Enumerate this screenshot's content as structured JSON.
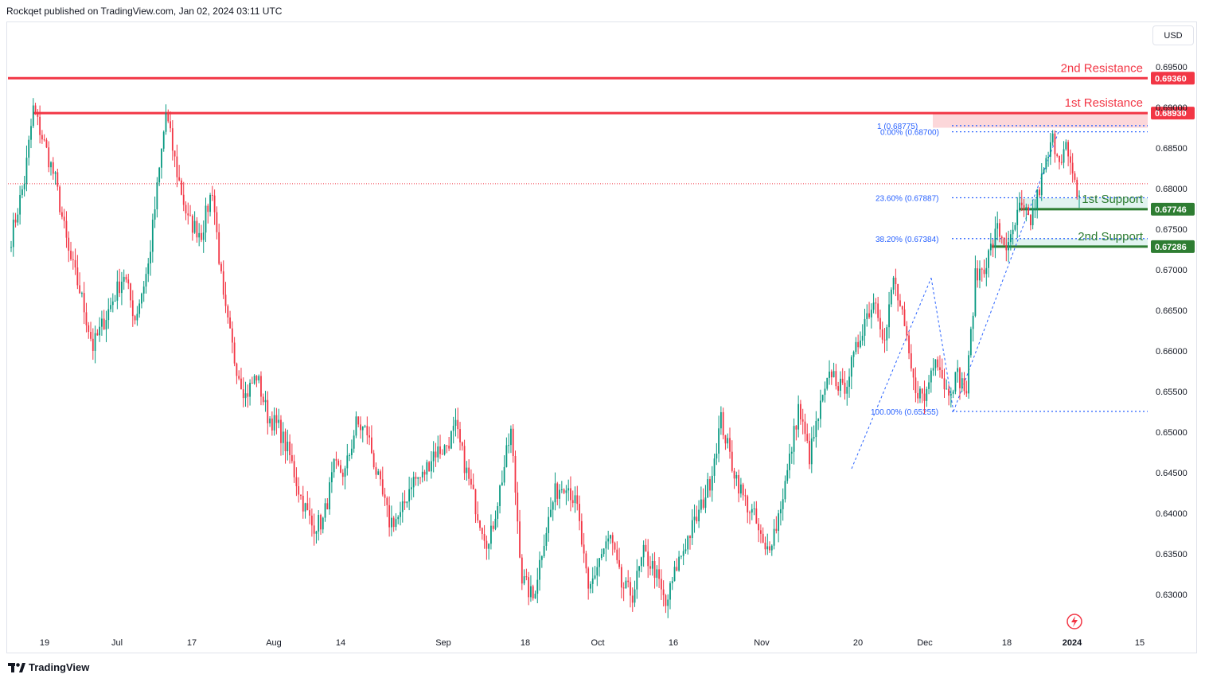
{
  "header": {
    "text": "Rockqet published on TradingView.com, Jan 02, 2024 03:11 UTC"
  },
  "currency_button": "USD",
  "footer": {
    "logo_text": "TradingView"
  },
  "colors": {
    "up": "#089981",
    "down": "#f23645",
    "resistance": "#f23645",
    "support": "#089981",
    "support_line": "#2e7d32",
    "fib": "#2962ff",
    "grid_text": "#131722"
  },
  "chart_data": {
    "type": "candlestick",
    "ylim": [
      0.627,
      0.6995
    ],
    "y_ticks": [
      "0.69500",
      "0.69000",
      "0.68500",
      "0.68000",
      "0.67500",
      "0.67000",
      "0.66500",
      "0.66000",
      "0.65500",
      "0.65000",
      "0.64500",
      "0.64000",
      "0.63500",
      "0.63000"
    ],
    "x_ticks": [
      "19",
      "Jul",
      "17",
      "Aug",
      "14",
      "Sep",
      "18",
      "Oct",
      "16",
      "Nov",
      "20",
      "Dec",
      "18",
      "2024",
      "15"
    ],
    "levels": [
      {
        "label": "2nd Resistance",
        "price": "0.69360",
        "kind": "resistance"
      },
      {
        "label": "1st Resistance",
        "price": "0.68930",
        "kind": "resistance"
      },
      {
        "label": "1st Support",
        "price": "0.67746",
        "kind": "support"
      },
      {
        "label": "2nd Support",
        "price": "0.67286",
        "kind": "support"
      }
    ],
    "fib_labels": [
      {
        "text": "1 (0.68775)"
      },
      {
        "text": "0.00% (0.68700)"
      },
      {
        "text": "23.60% (0.67887)"
      },
      {
        "text": "38.20% (0.67384)"
      },
      {
        "text": "100.00% (0.65255)"
      }
    ],
    "price_path": [
      [
        0,
        0.674
      ],
      [
        6,
        0.681
      ],
      [
        10,
        0.6898
      ],
      [
        15,
        0.6855
      ],
      [
        20,
        0.681
      ],
      [
        26,
        0.672
      ],
      [
        31,
        0.6675
      ],
      [
        37,
        0.6605
      ],
      [
        44,
        0.665
      ],
      [
        51,
        0.6695
      ],
      [
        56,
        0.664
      ],
      [
        62,
        0.6705
      ],
      [
        70,
        0.6893
      ],
      [
        75,
        0.682
      ],
      [
        80,
        0.676
      ],
      [
        86,
        0.6745
      ],
      [
        91,
        0.68
      ],
      [
        96,
        0.666
      ],
      [
        101,
        0.659
      ],
      [
        106,
        0.6545
      ],
      [
        111,
        0.657
      ],
      [
        116,
        0.652
      ],
      [
        121,
        0.6505
      ],
      [
        126,
        0.647
      ],
      [
        131,
        0.642
      ],
      [
        136,
        0.6385
      ],
      [
        141,
        0.639
      ],
      [
        146,
        0.6455
      ],
      [
        151,
        0.645
      ],
      [
        156,
        0.651
      ],
      [
        161,
        0.65
      ],
      [
        166,
        0.644
      ],
      [
        171,
        0.639
      ],
      [
        176,
        0.6395
      ],
      [
        181,
        0.644
      ],
      [
        186,
        0.6445
      ],
      [
        191,
        0.6475
      ],
      [
        196,
        0.648
      ],
      [
        201,
        0.6505
      ],
      [
        206,
        0.645
      ],
      [
        211,
        0.64
      ],
      [
        216,
        0.636
      ],
      [
        221,
        0.643
      ],
      [
        226,
        0.65
      ],
      [
        231,
        0.632
      ],
      [
        236,
        0.6295
      ],
      [
        241,
        0.637
      ],
      [
        246,
        0.6425
      ],
      [
        251,
        0.644
      ],
      [
        256,
        0.6405
      ],
      [
        261,
        0.63
      ],
      [
        266,
        0.6345
      ],
      [
        271,
        0.637
      ],
      [
        276,
        0.631
      ],
      [
        281,
        0.63
      ],
      [
        286,
        0.635
      ],
      [
        291,
        0.633
      ],
      [
        296,
        0.6285
      ],
      [
        301,
        0.6335
      ],
      [
        306,
        0.637
      ],
      [
        311,
        0.64
      ],
      [
        316,
        0.644
      ],
      [
        321,
        0.6515
      ],
      [
        326,
        0.646
      ],
      [
        331,
        0.642
      ],
      [
        336,
        0.6395
      ],
      [
        341,
        0.635
      ],
      [
        346,
        0.6385
      ],
      [
        351,
        0.645
      ],
      [
        356,
        0.653
      ],
      [
        361,
        0.647
      ],
      [
        366,
        0.653
      ],
      [
        371,
        0.6575
      ],
      [
        376,
        0.655
      ],
      [
        381,
        0.659
      ],
      [
        386,
        0.664
      ],
      [
        391,
        0.6665
      ],
      [
        395,
        0.661
      ],
      [
        399,
        0.669
      ],
      [
        403,
        0.664
      ],
      [
        408,
        0.656
      ],
      [
        413,
        0.654
      ],
      [
        418,
        0.66
      ],
      [
        423,
        0.655
      ],
      [
        428,
        0.657
      ],
      [
        432,
        0.655
      ],
      [
        436,
        0.669
      ],
      [
        441,
        0.671
      ],
      [
        446,
        0.675
      ],
      [
        451,
        0.6725
      ],
      [
        456,
        0.6775
      ],
      [
        461,
        0.676
      ],
      [
        466,
        0.681
      ],
      [
        471,
        0.686
      ],
      [
        474,
        0.684
      ],
      [
        477,
        0.685
      ],
      [
        480,
        0.681
      ],
      [
        483,
        0.679
      ]
    ]
  }
}
